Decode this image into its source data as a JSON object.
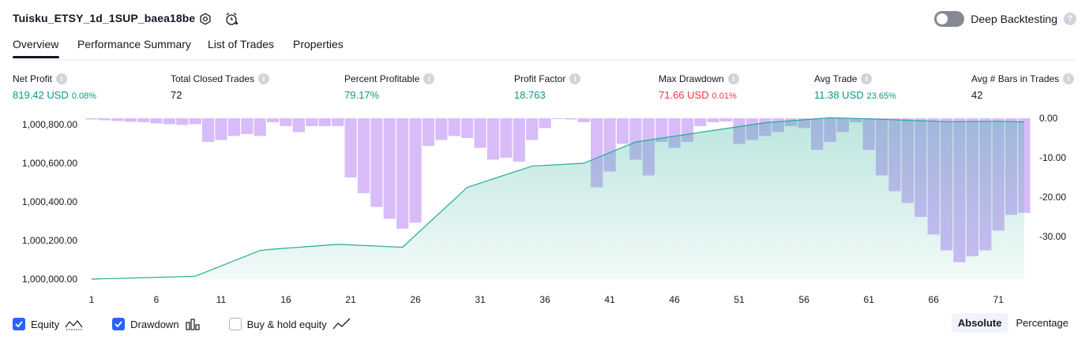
{
  "header": {
    "strategy_name": "Tuisku_ETSY_1d_1SUP_baea18be",
    "deep_backtesting_label": "Deep Backtesting",
    "deep_backtesting_enabled": false
  },
  "tabs": [
    {
      "label": "Overview",
      "active": true
    },
    {
      "label": "Performance Summary",
      "active": false
    },
    {
      "label": "List of Trades",
      "active": false
    },
    {
      "label": "Properties",
      "active": false
    }
  ],
  "metrics": [
    {
      "label": "Net Profit",
      "value": "819.42 USD",
      "pct": "0.08%",
      "tone": "green"
    },
    {
      "label": "Total Closed Trades",
      "value": "72",
      "pct": "",
      "tone": "neutral"
    },
    {
      "label": "Percent Profitable",
      "value": "79.17%",
      "pct": "",
      "tone": "green"
    },
    {
      "label": "Profit Factor",
      "value": "18.763",
      "pct": "",
      "tone": "green"
    },
    {
      "label": "Max Drawdown",
      "value": "71.66 USD",
      "pct": "0.01%",
      "tone": "red"
    },
    {
      "label": "Avg Trade",
      "value": "11.38 USD",
      "pct": "23.65%",
      "tone": "green"
    },
    {
      "label": "Avg # Bars in Trades",
      "value": "42",
      "pct": "",
      "tone": "neutral"
    }
  ],
  "chart_data": {
    "type": "line",
    "x_ticks": [
      1,
      6,
      11,
      16,
      21,
      26,
      31,
      36,
      41,
      46,
      51,
      56,
      61,
      66,
      71
    ],
    "y_left_ticks": [
      "1,000,000.00",
      "1,000,200.00",
      "1,000,400.00",
      "1,000,600.00",
      "1,000,800.00"
    ],
    "y_left_range": [
      1000000,
      1000800
    ],
    "y_right_ticks": [
      "0.00",
      "-10.00",
      "-20.00",
      "-30.00"
    ],
    "y_right_range": [
      -38,
      0
    ],
    "equity_color": "#22ab94",
    "drawdown_color": "#c6a0f6",
    "series": [
      {
        "name": "Equity",
        "x": [
          1,
          9,
          14,
          15,
          20,
          25,
          30,
          35,
          39,
          43,
          48,
          53,
          58,
          60,
          61,
          67,
          71,
          73
        ],
        "values": [
          1000000,
          1000015,
          1000148,
          1000155,
          1000180,
          1000165,
          1000475,
          1000585,
          1000600,
          1000710,
          1000760,
          1000810,
          1000835,
          1000832,
          1000830,
          1000815,
          1000817,
          1000814
        ]
      },
      {
        "name": "Drawdown",
        "x": [
          1,
          2,
          3,
          4,
          5,
          6,
          7,
          8,
          9,
          10,
          11,
          12,
          13,
          14,
          15,
          16,
          17,
          18,
          19,
          20,
          21,
          22,
          23,
          24,
          25,
          26,
          27,
          28,
          29,
          30,
          31,
          32,
          33,
          34,
          35,
          36,
          37,
          38,
          39,
          40,
          41,
          42,
          43,
          44,
          45,
          46,
          47,
          48,
          49,
          50,
          51,
          52,
          53,
          54,
          55,
          56,
          57,
          58,
          59,
          60,
          61,
          62,
          63,
          64,
          65,
          66,
          67,
          68,
          69,
          70,
          71,
          72,
          73
        ],
        "values": [
          -0.3,
          -0.5,
          -0.7,
          -0.9,
          -1.0,
          -1.3,
          -1.5,
          -1.7,
          -1.5,
          -6.0,
          -5.5,
          -4.5,
          -4.0,
          -4.5,
          -1.0,
          -2.0,
          -3.5,
          -2.0,
          -2.0,
          -2.0,
          -15.0,
          -19.0,
          -22.5,
          -25.5,
          -28.0,
          -26.5,
          -7.0,
          -5.5,
          -4.5,
          -5.0,
          -7.5,
          -10.5,
          -10.0,
          -11.0,
          -5.5,
          -2.5,
          -0.2,
          -0.3,
          -1.0,
          -17.5,
          -13.5,
          -6.5,
          -10.5,
          -14.5,
          -6.0,
          -7.5,
          -6.0,
          -2.0,
          -1.0,
          -0.8,
          -6.5,
          -5.5,
          -4.5,
          -3.5,
          -2.0,
          -2.5,
          -8.0,
          -6.0,
          -3.5,
          -1.0,
          -8.0,
          -14.5,
          -18.5,
          -21.5,
          -25.0,
          -29.5,
          -33.5,
          -36.5,
          -35.0,
          -33.5,
          -28.5,
          -24.5,
          -24.0
        ]
      }
    ]
  },
  "legend": [
    {
      "label": "Equity",
      "checked": true,
      "icon": "area-line-icon"
    },
    {
      "label": "Drawdown",
      "checked": true,
      "icon": "bars-icon"
    },
    {
      "label": "Buy & hold equity",
      "checked": false,
      "icon": "line-chart-icon"
    }
  ],
  "view_toggle": {
    "options": [
      "Absolute",
      "Percentage"
    ],
    "selected": "Absolute"
  }
}
